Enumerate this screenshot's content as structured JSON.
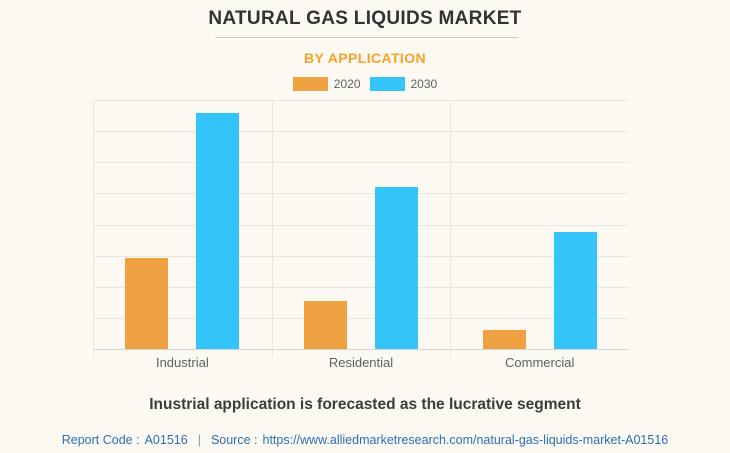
{
  "header": {
    "title": "NATURAL GAS LIQUIDS MARKET",
    "subtitle": "BY APPLICATION"
  },
  "chart_data": {
    "type": "bar",
    "title": "NATURAL GAS LIQUIDS MARKET",
    "subtitle": "BY APPLICATION",
    "categories": [
      "Industrial",
      "Residential",
      "Commercial"
    ],
    "series": [
      {
        "name": "2020",
        "color": "#EFA041",
        "values_pct_of_axis_max": [
          36.5,
          19.3,
          7.6
        ]
      },
      {
        "name": "2030",
        "color": "#33C4FA",
        "values_pct_of_axis_max": [
          94.8,
          65.1,
          47.0
        ]
      }
    ],
    "xlabel": "",
    "ylabel": "",
    "y_axis_tick_labels_visible": false,
    "legend_position": "top",
    "gridlines": {
      "horizontal_divisions": 8,
      "vertical_category_separators": true
    }
  },
  "caption": "Inustrial application is forecasted as the lucrative segment",
  "footer": {
    "report_code_label": "Report Code :",
    "report_code": "A01516",
    "separator": "|",
    "source_label": "Source :",
    "source_url": "https://www.alliedmarketresearch.com/natural-gas-liquids-market-A01516"
  },
  "colors": {
    "bg": "#FBF9F2",
    "accent_orange": "#F6A22B",
    "bar_2020": "#EFA041",
    "bar_2030": "#33C4FA",
    "grid": "#E9E6DF",
    "axis": "#D8D5CC",
    "divider": "#CCC9C3",
    "text_dark": "#333333",
    "text_gray": "#616161",
    "caption": "#3C3C3C",
    "footer_blue": "#2D6FB7",
    "sep_gray": "#8A98A8"
  }
}
